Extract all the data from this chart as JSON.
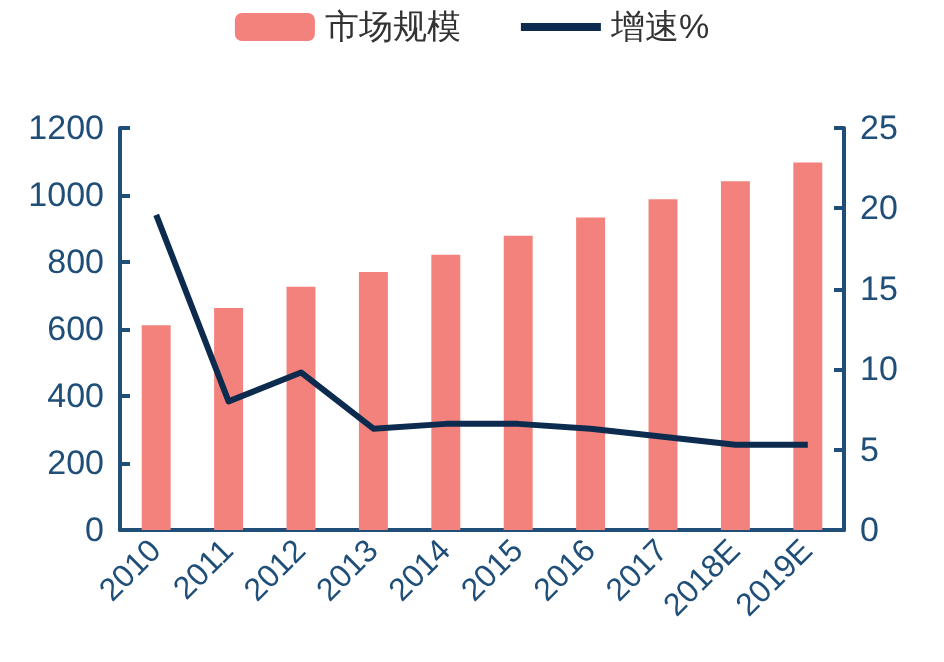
{
  "chart_data": {
    "type": "bar",
    "categories": [
      "2010",
      "2011",
      "2012",
      "2013",
      "2014",
      "2015",
      "2016",
      "2017",
      "2018E",
      "2019E"
    ],
    "series": [
      {
        "name": "市场规模",
        "color": "#f4827c",
        "values": [
          611,
          663,
          726,
          770,
          822,
          878,
          933,
          987,
          1041,
          1097
        ]
      },
      {
        "name": "增速%",
        "type": "line",
        "axis": "y2",
        "color": "#0d2b4e",
        "values": [
          19.6,
          8.0,
          9.8,
          6.3,
          6.6,
          6.6,
          6.3,
          5.8,
          5.3,
          5.3
        ]
      }
    ],
    "ylim": [
      0,
      1200
    ],
    "yticks": [
      0,
      200,
      400,
      600,
      800,
      1000,
      1200
    ],
    "y2lim": [
      0,
      25
    ],
    "y2ticks": [
      0,
      5,
      10,
      15,
      20,
      25
    ],
    "grid": false,
    "legend": "top",
    "marker": "none",
    "line_style": "solid"
  }
}
